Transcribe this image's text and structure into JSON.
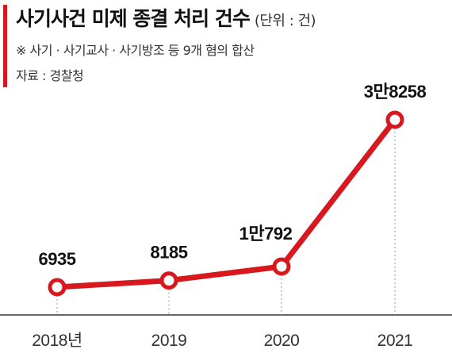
{
  "header": {
    "title": "사기사건 미제 종결 처리 건수",
    "unit": "(단위 : 건)",
    "note": "※ 사기 · 사기교사 · 사기방조 등 9개 혐의 합산",
    "source": "자료 : 경찰청"
  },
  "colors": {
    "accent": "#d7191f",
    "line": "#d7191f",
    "marker_fill": "#ffffff"
  },
  "chart_data": {
    "type": "line",
    "title": "사기사건 미제 종결 처리 건수",
    "xlabel": "",
    "ylabel": "",
    "categories": [
      "2018년",
      "2019",
      "2020",
      "2021"
    ],
    "series": [
      {
        "values": [
          6935,
          8185,
          10792,
          38258
        ]
      }
    ],
    "data_labels": [
      "6935",
      "8185",
      "1만792",
      "3만8258"
    ],
    "grid": false,
    "legend": "none"
  }
}
